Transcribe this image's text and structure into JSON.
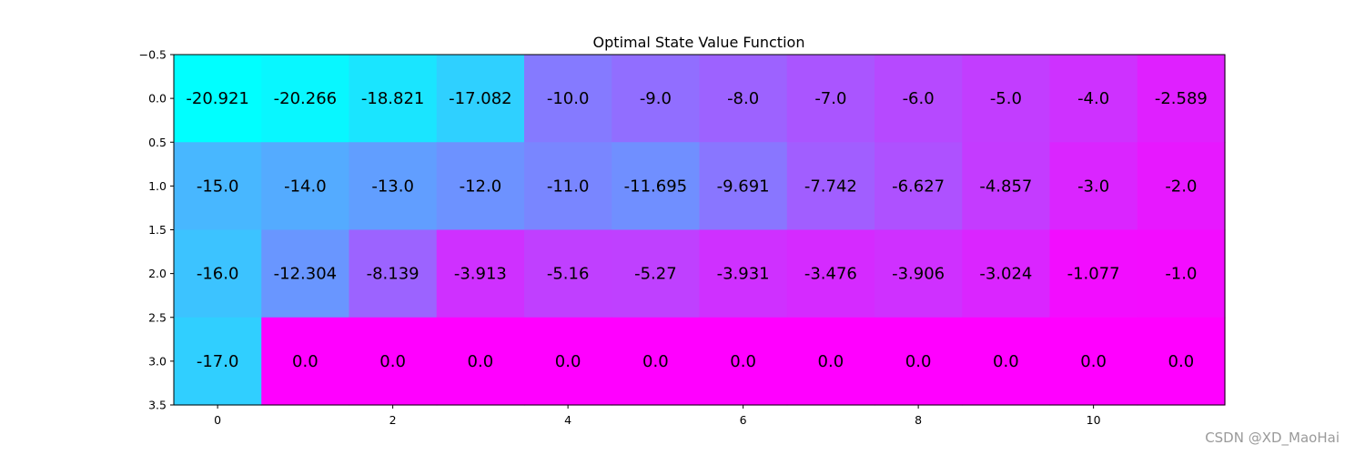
{
  "chart_data": {
    "type": "heatmap",
    "title": "Optimal State Value Function",
    "colormap": "cool",
    "colors": {
      "low": "#00ffff",
      "high": "#ff00ff"
    },
    "value_range": [
      -20.921,
      0.0
    ],
    "rows": [
      [
        "-20.921",
        "-20.266",
        "-18.821",
        "-17.082",
        "-10.0",
        "-9.0",
        "-8.0",
        "-7.0",
        "-6.0",
        "-5.0",
        "-4.0",
        "-2.589"
      ],
      [
        "-15.0",
        "-14.0",
        "-13.0",
        "-12.0",
        "-11.0",
        "-11.695",
        "-9.691",
        "-7.742",
        "-6.627",
        "-4.857",
        "-3.0",
        "-2.0"
      ],
      [
        "-16.0",
        "-12.304",
        "-8.139",
        "-3.913",
        "-5.16",
        "-5.27",
        "-3.931",
        "-3.476",
        "-3.906",
        "-3.024",
        "-1.077",
        "-1.0"
      ],
      [
        "-17.0",
        "0.0",
        "0.0",
        "0.0",
        "0.0",
        "0.0",
        "0.0",
        "0.0",
        "0.0",
        "0.0",
        "0.0",
        "0.0"
      ]
    ],
    "x_ticks": [
      {
        "value": 0,
        "label": "0"
      },
      {
        "value": 2,
        "label": "2"
      },
      {
        "value": 4,
        "label": "4"
      },
      {
        "value": 6,
        "label": "6"
      },
      {
        "value": 8,
        "label": "8"
      },
      {
        "value": 10,
        "label": "10"
      }
    ],
    "y_ticks": [
      {
        "value": -0.5,
        "label": "−0.5"
      },
      {
        "value": 0.0,
        "label": "0.0"
      },
      {
        "value": 0.5,
        "label": "0.5"
      },
      {
        "value": 1.0,
        "label": "1.0"
      },
      {
        "value": 1.5,
        "label": "1.5"
      },
      {
        "value": 2.0,
        "label": "2.0"
      },
      {
        "value": 2.5,
        "label": "2.5"
      },
      {
        "value": 3.0,
        "label": "3.0"
      },
      {
        "value": 3.5,
        "label": "3.5"
      }
    ],
    "xlim": [
      -0.5,
      11.5
    ],
    "ylim": [
      3.5,
      -0.5
    ]
  },
  "watermark": "CSDN @XD_MaoHai"
}
